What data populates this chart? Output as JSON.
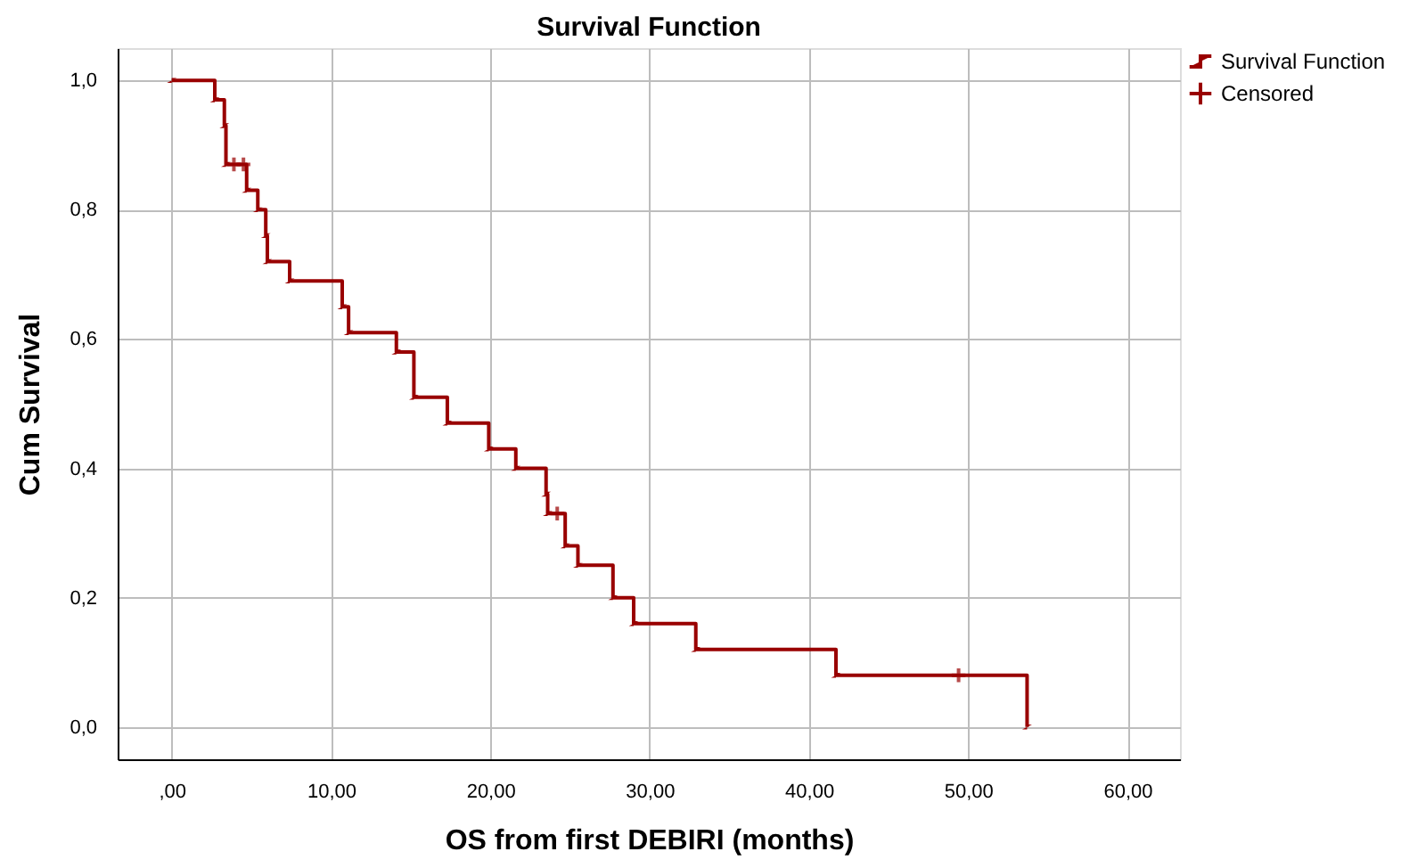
{
  "chart_data": {
    "type": "step",
    "title": "Survival Function",
    "xlabel": "OS from first DEBIRI (months)",
    "ylabel": "Cum Survival",
    "series": [
      {
        "name": "Survival Function",
        "color": "#990000",
        "marker": "none",
        "x": [
          0,
          2.7,
          3.3,
          3.4,
          4.7,
          5.4,
          5.9,
          6.0,
          7.4,
          10.7,
          11.1,
          14.1,
          15.2,
          17.3,
          19.9,
          21.6,
          23.5,
          23.6,
          24.7,
          25.5,
          27.7,
          29.0,
          32.9,
          41.7,
          53.7
        ],
        "values": [
          1.0,
          0.97,
          0.93,
          0.87,
          0.83,
          0.8,
          0.76,
          0.72,
          0.69,
          0.65,
          0.61,
          0.58,
          0.51,
          0.47,
          0.43,
          0.4,
          0.36,
          0.33,
          0.28,
          0.25,
          0.2,
          0.16,
          0.12,
          0.08,
          0.0
        ]
      },
      {
        "name": "Censored",
        "color": "#990000",
        "type": "scatter",
        "marker": "cross",
        "x": [
          3.9,
          4.5,
          24.2,
          49.4
        ],
        "values": [
          0.87,
          0.87,
          0.33,
          0.08
        ]
      }
    ],
    "xlim": [
      -3.4,
      63.3
    ],
    "ylim": [
      -0.05,
      1.05
    ],
    "xticks": [
      {
        "value": 0,
        "label": ",00"
      },
      {
        "value": 10,
        "label": "10,00"
      },
      {
        "value": 20,
        "label": "20,00"
      },
      {
        "value": 30,
        "label": "30,00"
      },
      {
        "value": 40,
        "label": "40,00"
      },
      {
        "value": 50,
        "label": "50,00"
      },
      {
        "value": 60,
        "label": "60,00"
      }
    ],
    "yticks": [
      {
        "value": 0,
        "label": "0,0"
      },
      {
        "value": 0.2,
        "label": "0,2"
      },
      {
        "value": 0.4,
        "label": "0,4"
      },
      {
        "value": 0.6,
        "label": "0,6"
      },
      {
        "value": 0.8,
        "label": "0,8"
      },
      {
        "value": 1.0,
        "label": "1,0"
      }
    ],
    "grid": true,
    "legend": "top right"
  }
}
